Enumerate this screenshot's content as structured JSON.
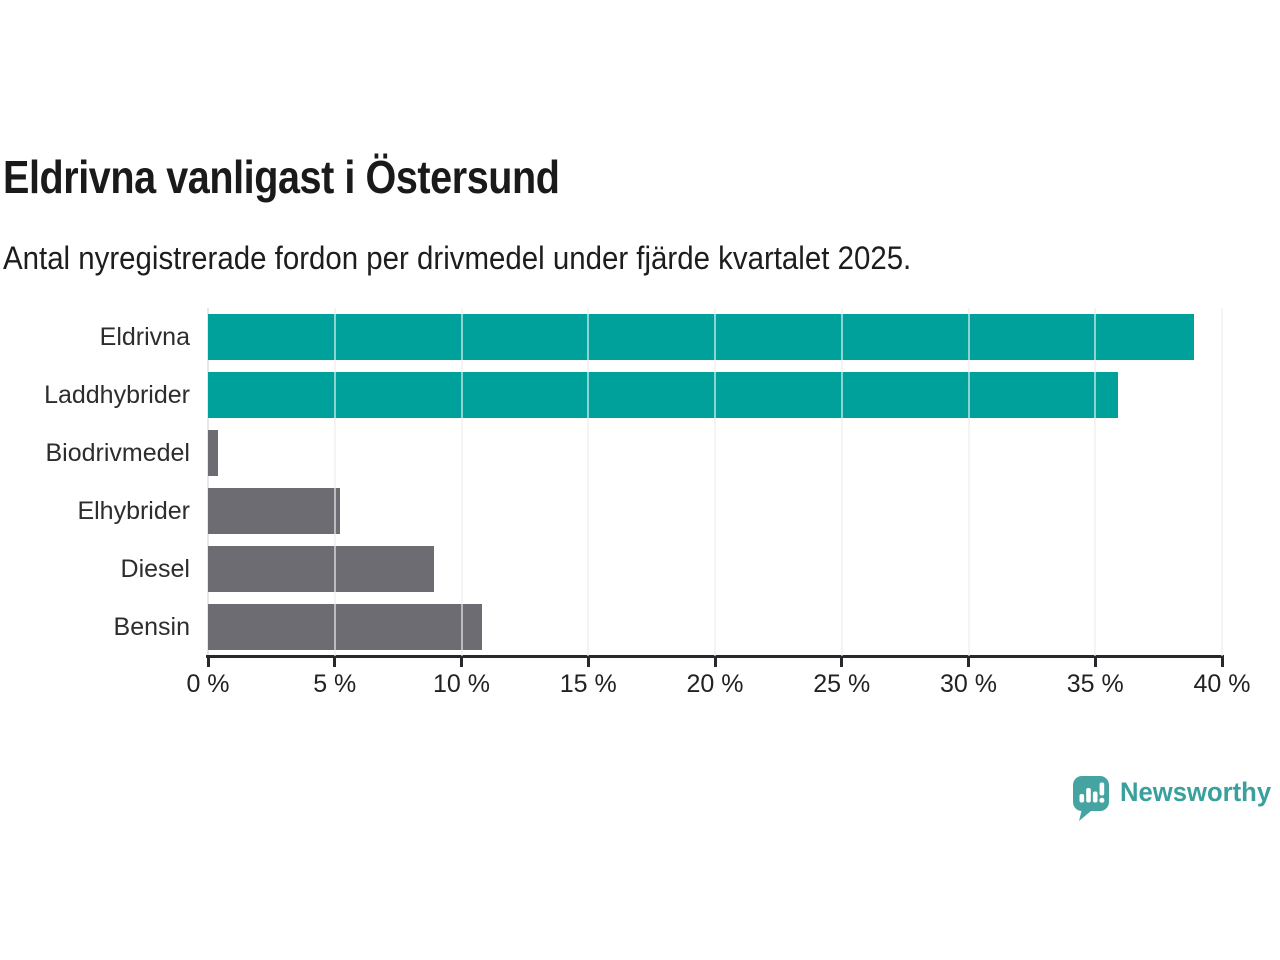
{
  "header": {
    "title": "Eldrivna vanligast i Östersund",
    "subtitle": "Antal nyregistrerade fordon per drivmedel under fjärde kvartalet 2025."
  },
  "chart_data": {
    "type": "bar",
    "orientation": "horizontal",
    "title": "Eldrivna vanligast i Östersund",
    "subtitle": "Antal nyregistrerade fordon per drivmedel under fjärde kvartalet 2025.",
    "categories": [
      "Eldrivna",
      "Laddhybrider",
      "Biodrivmedel",
      "Elhybrider",
      "Diesel",
      "Bensin"
    ],
    "values": [
      38.9,
      35.9,
      0.4,
      5.2,
      8.9,
      10.8
    ],
    "unit": "%",
    "xlim": [
      0,
      40
    ],
    "x_ticks": [
      0,
      5,
      10,
      15,
      20,
      25,
      30,
      35,
      40
    ],
    "x_tick_labels": [
      "0 %",
      "5 %",
      "10 %",
      "15 %",
      "20 %",
      "25 %",
      "30 %",
      "35 %",
      "40 %"
    ],
    "grid": true,
    "legend": "none",
    "bar_colors": [
      "#00a19a",
      "#00a19a",
      "#6c6c72",
      "#6c6c72",
      "#6c6c72",
      "#6c6c72"
    ],
    "highlight_color": "#00a19a",
    "default_color": "#6c6c72",
    "gridline_color": "#e6e6e6",
    "axis_color": "#28282c"
  },
  "footer": {
    "brand": "Newsworthy",
    "brand_color": "#39a09d",
    "logo_icon": "bar-chart-speech-bubble-icon"
  }
}
